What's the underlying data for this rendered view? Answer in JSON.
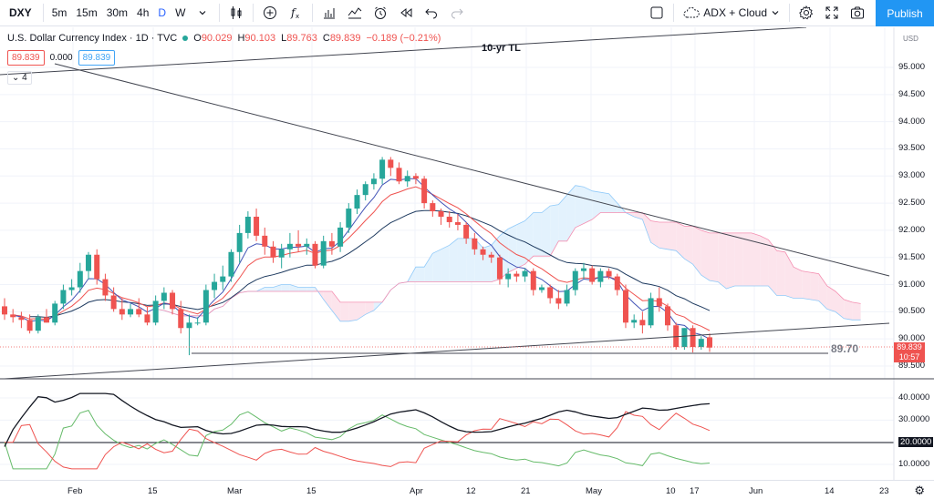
{
  "toolbar": {
    "symbol": "DXY",
    "intervals": [
      "5m",
      "15m",
      "30m",
      "4h",
      "D",
      "W"
    ],
    "active_interval": "D",
    "indicator_label": "ADX + Cloud",
    "publish_label": "Publish"
  },
  "legend": {
    "title": "U.S. Dollar Currency Index · 1D · TVC",
    "o_label": "O",
    "o": "90.029",
    "h_label": "H",
    "h": "90.103",
    "l_label": "L",
    "l": "89.763",
    "c_label": "C",
    "c": "89.839",
    "change": "−0.189 (−0.21%)",
    "value_1": "89.839",
    "value_2": "0.000",
    "value_3": "89.839",
    "collapse": "4"
  },
  "annotations": {
    "trendline_label": "10-yr TL",
    "level_label": "89.70"
  },
  "price_scale": {
    "currency": "USD",
    "ticks": [
      "95.000",
      "94.500",
      "94.000",
      "93.500",
      "93.000",
      "92.500",
      "92.000",
      "91.500",
      "91.000",
      "90.500",
      "90.000",
      "89.500"
    ],
    "last_price": "89.839",
    "countdown": "10:57"
  },
  "indicator_scale": {
    "ticks": [
      "40.0000",
      "30.0000",
      "20.0000",
      "10.0000"
    ],
    "reference_level": "20.0000"
  },
  "time_axis": {
    "labels": [
      "Feb",
      "15",
      "Mar",
      "15",
      "Apr",
      "12",
      "21",
      "May",
      "10",
      "17",
      "Jun",
      "14",
      "23"
    ]
  },
  "colors": {
    "up": "#26a69a",
    "down": "#ef5350",
    "cloud_bear": "#fce4ec",
    "cloud_bull": "#e3f2fd",
    "accent": "#2962ff"
  },
  "chart_data": {
    "type": "candlestick",
    "symbol": "DXY",
    "title": "U.S. Dollar Currency Index · 1D · TVC",
    "y_range": [
      89.5,
      95.0
    ],
    "candles": [
      {
        "o": 90.6,
        "h": 90.75,
        "l": 90.35,
        "c": 90.45
      },
      {
        "o": 90.45,
        "h": 90.55,
        "l": 90.3,
        "c": 90.4
      },
      {
        "o": 90.4,
        "h": 90.5,
        "l": 90.2,
        "c": 90.35
      },
      {
        "o": 90.35,
        "h": 90.45,
        "l": 90.1,
        "c": 90.15
      },
      {
        "o": 90.15,
        "h": 90.45,
        "l": 90.1,
        "c": 90.4
      },
      {
        "o": 90.4,
        "h": 90.55,
        "l": 90.3,
        "c": 90.3
      },
      {
        "o": 90.3,
        "h": 90.7,
        "l": 90.25,
        "c": 90.65
      },
      {
        "o": 90.65,
        "h": 91.0,
        "l": 90.55,
        "c": 90.9
      },
      {
        "o": 90.9,
        "h": 91.1,
        "l": 90.8,
        "c": 90.95
      },
      {
        "o": 90.95,
        "h": 91.4,
        "l": 90.85,
        "c": 91.25
      },
      {
        "o": 91.25,
        "h": 91.6,
        "l": 91.1,
        "c": 91.55
      },
      {
        "o": 91.55,
        "h": 91.65,
        "l": 91.0,
        "c": 91.1
      },
      {
        "o": 91.1,
        "h": 91.2,
        "l": 90.7,
        "c": 90.8
      },
      {
        "o": 90.8,
        "h": 90.95,
        "l": 90.5,
        "c": 90.55
      },
      {
        "o": 90.55,
        "h": 90.75,
        "l": 90.35,
        "c": 90.45
      },
      {
        "o": 90.45,
        "h": 90.65,
        "l": 90.4,
        "c": 90.55
      },
      {
        "o": 90.55,
        "h": 90.75,
        "l": 90.4,
        "c": 90.45
      },
      {
        "o": 90.45,
        "h": 90.6,
        "l": 90.25,
        "c": 90.3
      },
      {
        "o": 90.3,
        "h": 90.8,
        "l": 90.25,
        "c": 90.7
      },
      {
        "o": 90.7,
        "h": 90.95,
        "l": 90.55,
        "c": 90.85
      },
      {
        "o": 90.85,
        "h": 90.9,
        "l": 90.45,
        "c": 90.55
      },
      {
        "o": 90.55,
        "h": 90.7,
        "l": 90.1,
        "c": 90.2
      },
      {
        "o": 90.2,
        "h": 90.45,
        "l": 89.7,
        "c": 90.3
      },
      {
        "o": 90.3,
        "h": 90.4,
        "l": 90.25,
        "c": 90.3
      },
      {
        "o": 90.3,
        "h": 91.0,
        "l": 90.25,
        "c": 90.9
      },
      {
        "o": 90.9,
        "h": 91.2,
        "l": 90.75,
        "c": 91.05
      },
      {
        "o": 91.05,
        "h": 91.35,
        "l": 90.9,
        "c": 91.15
      },
      {
        "o": 91.15,
        "h": 91.65,
        "l": 91.05,
        "c": 91.6
      },
      {
        "o": 91.6,
        "h": 92.1,
        "l": 91.4,
        "c": 91.95
      },
      {
        "o": 91.95,
        "h": 92.35,
        "l": 91.85,
        "c": 92.25
      },
      {
        "o": 92.25,
        "h": 92.4,
        "l": 91.8,
        "c": 91.9
      },
      {
        "o": 91.9,
        "h": 92.05,
        "l": 91.55,
        "c": 91.7
      },
      {
        "o": 91.7,
        "h": 91.8,
        "l": 91.4,
        "c": 91.5
      },
      {
        "o": 91.5,
        "h": 91.75,
        "l": 91.3,
        "c": 91.65
      },
      {
        "o": 91.65,
        "h": 91.95,
        "l": 91.5,
        "c": 91.75
      },
      {
        "o": 91.75,
        "h": 92.0,
        "l": 91.6,
        "c": 91.7
      },
      {
        "o": 91.7,
        "h": 91.85,
        "l": 91.55,
        "c": 91.75
      },
      {
        "o": 91.75,
        "h": 91.8,
        "l": 91.3,
        "c": 91.35
      },
      {
        "o": 91.35,
        "h": 91.9,
        "l": 91.3,
        "c": 91.8
      },
      {
        "o": 91.8,
        "h": 91.95,
        "l": 91.55,
        "c": 91.7
      },
      {
        "o": 91.7,
        "h": 92.15,
        "l": 91.6,
        "c": 92.05
      },
      {
        "o": 92.05,
        "h": 92.5,
        "l": 91.95,
        "c": 92.4
      },
      {
        "o": 92.4,
        "h": 92.75,
        "l": 92.3,
        "c": 92.65
      },
      {
        "o": 92.65,
        "h": 92.9,
        "l": 92.55,
        "c": 92.85
      },
      {
        "o": 92.85,
        "h": 93.05,
        "l": 92.75,
        "c": 92.95
      },
      {
        "o": 92.95,
        "h": 93.35,
        "l": 92.85,
        "c": 93.3
      },
      {
        "o": 93.3,
        "h": 93.35,
        "l": 93.0,
        "c": 93.15
      },
      {
        "o": 93.15,
        "h": 93.25,
        "l": 92.85,
        "c": 92.9
      },
      {
        "o": 92.9,
        "h": 93.1,
        "l": 92.8,
        "c": 93.0
      },
      {
        "o": 93.0,
        "h": 93.05,
        "l": 92.85,
        "c": 92.95
      },
      {
        "o": 92.95,
        "h": 93.0,
        "l": 92.4,
        "c": 92.5
      },
      {
        "o": 92.5,
        "h": 92.55,
        "l": 92.25,
        "c": 92.35
      },
      {
        "o": 92.35,
        "h": 92.4,
        "l": 92.1,
        "c": 92.25
      },
      {
        "o": 92.25,
        "h": 92.35,
        "l": 92.05,
        "c": 92.15
      },
      {
        "o": 92.15,
        "h": 92.3,
        "l": 92.0,
        "c": 92.1
      },
      {
        "o": 92.1,
        "h": 92.15,
        "l": 91.75,
        "c": 91.85
      },
      {
        "o": 91.85,
        "h": 91.95,
        "l": 91.55,
        "c": 91.65
      },
      {
        "o": 91.65,
        "h": 91.7,
        "l": 91.45,
        "c": 91.55
      },
      {
        "o": 91.55,
        "h": 91.6,
        "l": 91.4,
        "c": 91.5
      },
      {
        "o": 91.5,
        "h": 91.55,
        "l": 91.0,
        "c": 91.1
      },
      {
        "o": 91.1,
        "h": 91.3,
        "l": 90.95,
        "c": 91.2
      },
      {
        "o": 91.2,
        "h": 91.25,
        "l": 91.05,
        "c": 91.15
      },
      {
        "o": 91.15,
        "h": 91.3,
        "l": 91.05,
        "c": 91.25
      },
      {
        "o": 91.25,
        "h": 91.3,
        "l": 90.8,
        "c": 90.9
      },
      {
        "o": 90.9,
        "h": 91.0,
        "l": 90.85,
        "c": 90.95
      },
      {
        "o": 90.95,
        "h": 91.0,
        "l": 90.65,
        "c": 90.75
      },
      {
        "o": 90.75,
        "h": 90.9,
        "l": 90.55,
        "c": 90.65
      },
      {
        "o": 90.65,
        "h": 91.0,
        "l": 90.6,
        "c": 90.9
      },
      {
        "o": 90.9,
        "h": 91.3,
        "l": 90.8,
        "c": 91.25
      },
      {
        "o": 91.25,
        "h": 91.4,
        "l": 91.1,
        "c": 91.3
      },
      {
        "o": 91.3,
        "h": 91.35,
        "l": 91.0,
        "c": 91.05
      },
      {
        "o": 91.05,
        "h": 91.3,
        "l": 90.95,
        "c": 91.25
      },
      {
        "o": 91.25,
        "h": 91.3,
        "l": 91.1,
        "c": 91.15
      },
      {
        "o": 91.15,
        "h": 91.2,
        "l": 90.8,
        "c": 90.9
      },
      {
        "o": 90.9,
        "h": 91.0,
        "l": 90.2,
        "c": 90.3
      },
      {
        "o": 90.3,
        "h": 90.45,
        "l": 90.2,
        "c": 90.35
      },
      {
        "o": 90.35,
        "h": 90.5,
        "l": 90.1,
        "c": 90.25
      },
      {
        "o": 90.25,
        "h": 90.85,
        "l": 90.2,
        "c": 90.75
      },
      {
        "o": 90.75,
        "h": 90.95,
        "l": 90.5,
        "c": 90.6
      },
      {
        "o": 90.6,
        "h": 90.65,
        "l": 90.15,
        "c": 90.25
      },
      {
        "o": 90.25,
        "h": 90.3,
        "l": 89.8,
        "c": 89.85
      },
      {
        "o": 89.85,
        "h": 90.2,
        "l": 89.8,
        "c": 90.2
      },
      {
        "o": 90.2,
        "h": 90.25,
        "l": 89.75,
        "c": 89.85
      },
      {
        "o": 89.85,
        "h": 90.05,
        "l": 89.8,
        "c": 90.0
      },
      {
        "o": 90.03,
        "h": 90.1,
        "l": 89.76,
        "c": 89.84
      }
    ]
  }
}
